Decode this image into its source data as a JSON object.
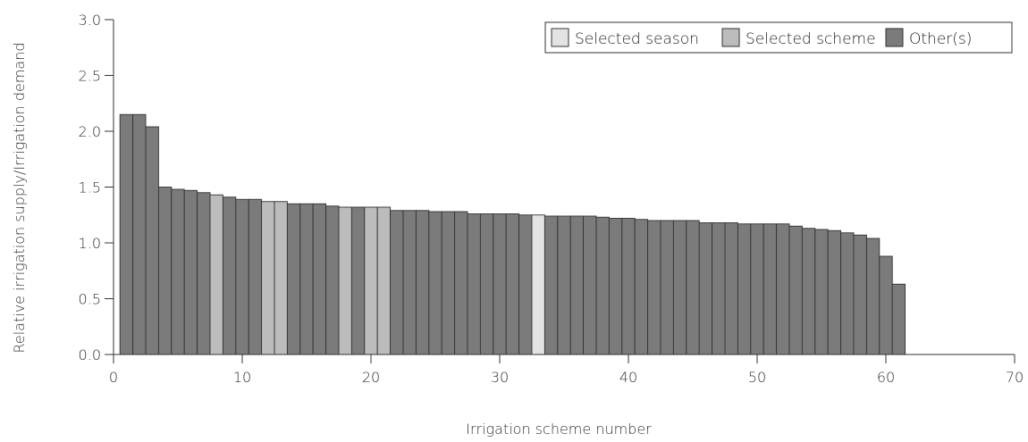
{
  "chart_data": {
    "type": "bar",
    "xlabel": "Irrigation scheme number",
    "ylabel": "Relative irrigation supply/Irrigation demand",
    "xlim": [
      0,
      70
    ],
    "ylim": [
      0,
      3.0
    ],
    "x_ticks": [
      0,
      10,
      20,
      30,
      40,
      50,
      60,
      70
    ],
    "x_tick_labels": [
      "0",
      "10",
      "20",
      "30",
      "40",
      "50",
      "60",
      "70"
    ],
    "y_ticks": [
      0,
      0.5,
      1.0,
      1.5,
      2.0,
      2.5,
      3.0
    ],
    "y_tick_labels": [
      "0.0",
      "0.5",
      "1.0",
      "1.5",
      "2.0",
      "2.5",
      "3.0"
    ],
    "grid": false,
    "legend_position": "top-right",
    "legend": [
      {
        "key": "season",
        "label": "Selected season",
        "color": "#e3e3e3"
      },
      {
        "key": "scheme",
        "label": "Selected scheme",
        "color": "#bcbcbc"
      },
      {
        "key": "other",
        "label": "Other(s)",
        "color": "#7b7b7b"
      }
    ],
    "bars": [
      {
        "x": 1,
        "value": 2.15,
        "category": "other"
      },
      {
        "x": 2,
        "value": 2.15,
        "category": "other"
      },
      {
        "x": 3,
        "value": 2.04,
        "category": "other"
      },
      {
        "x": 4,
        "value": 1.5,
        "category": "other"
      },
      {
        "x": 5,
        "value": 1.48,
        "category": "other"
      },
      {
        "x": 6,
        "value": 1.47,
        "category": "other"
      },
      {
        "x": 7,
        "value": 1.45,
        "category": "other"
      },
      {
        "x": 8,
        "value": 1.43,
        "category": "scheme"
      },
      {
        "x": 9,
        "value": 1.41,
        "category": "other"
      },
      {
        "x": 10,
        "value": 1.39,
        "category": "other"
      },
      {
        "x": 11,
        "value": 1.39,
        "category": "other"
      },
      {
        "x": 12,
        "value": 1.37,
        "category": "scheme"
      },
      {
        "x": 13,
        "value": 1.37,
        "category": "scheme"
      },
      {
        "x": 14,
        "value": 1.35,
        "category": "other"
      },
      {
        "x": 15,
        "value": 1.35,
        "category": "other"
      },
      {
        "x": 16,
        "value": 1.35,
        "category": "other"
      },
      {
        "x": 17,
        "value": 1.33,
        "category": "other"
      },
      {
        "x": 18,
        "value": 1.32,
        "category": "scheme"
      },
      {
        "x": 19,
        "value": 1.32,
        "category": "other"
      },
      {
        "x": 20,
        "value": 1.32,
        "category": "scheme"
      },
      {
        "x": 21,
        "value": 1.32,
        "category": "scheme"
      },
      {
        "x": 22,
        "value": 1.29,
        "category": "other"
      },
      {
        "x": 23,
        "value": 1.29,
        "category": "other"
      },
      {
        "x": 24,
        "value": 1.29,
        "category": "other"
      },
      {
        "x": 25,
        "value": 1.28,
        "category": "other"
      },
      {
        "x": 26,
        "value": 1.28,
        "category": "other"
      },
      {
        "x": 27,
        "value": 1.28,
        "category": "other"
      },
      {
        "x": 28,
        "value": 1.26,
        "category": "other"
      },
      {
        "x": 29,
        "value": 1.26,
        "category": "other"
      },
      {
        "x": 30,
        "value": 1.26,
        "category": "other"
      },
      {
        "x": 31,
        "value": 1.26,
        "category": "other"
      },
      {
        "x": 32,
        "value": 1.25,
        "category": "other"
      },
      {
        "x": 33,
        "value": 1.25,
        "category": "season"
      },
      {
        "x": 34,
        "value": 1.24,
        "category": "other"
      },
      {
        "x": 35,
        "value": 1.24,
        "category": "other"
      },
      {
        "x": 36,
        "value": 1.24,
        "category": "other"
      },
      {
        "x": 37,
        "value": 1.24,
        "category": "other"
      },
      {
        "x": 38,
        "value": 1.23,
        "category": "other"
      },
      {
        "x": 39,
        "value": 1.22,
        "category": "other"
      },
      {
        "x": 40,
        "value": 1.22,
        "category": "other"
      },
      {
        "x": 41,
        "value": 1.21,
        "category": "other"
      },
      {
        "x": 42,
        "value": 1.2,
        "category": "other"
      },
      {
        "x": 43,
        "value": 1.2,
        "category": "other"
      },
      {
        "x": 44,
        "value": 1.2,
        "category": "other"
      },
      {
        "x": 45,
        "value": 1.2,
        "category": "other"
      },
      {
        "x": 46,
        "value": 1.18,
        "category": "other"
      },
      {
        "x": 47,
        "value": 1.18,
        "category": "other"
      },
      {
        "x": 48,
        "value": 1.18,
        "category": "other"
      },
      {
        "x": 49,
        "value": 1.17,
        "category": "other"
      },
      {
        "x": 50,
        "value": 1.17,
        "category": "other"
      },
      {
        "x": 51,
        "value": 1.17,
        "category": "other"
      },
      {
        "x": 52,
        "value": 1.17,
        "category": "other"
      },
      {
        "x": 53,
        "value": 1.15,
        "category": "other"
      },
      {
        "x": 54,
        "value": 1.13,
        "category": "other"
      },
      {
        "x": 55,
        "value": 1.12,
        "category": "other"
      },
      {
        "x": 56,
        "value": 1.11,
        "category": "other"
      },
      {
        "x": 57,
        "value": 1.09,
        "category": "other"
      },
      {
        "x": 58,
        "value": 1.07,
        "category": "other"
      },
      {
        "x": 59,
        "value": 1.04,
        "category": "other"
      },
      {
        "x": 60,
        "value": 0.88,
        "category": "other"
      },
      {
        "x": 61,
        "value": 0.63,
        "category": "other"
      }
    ]
  }
}
